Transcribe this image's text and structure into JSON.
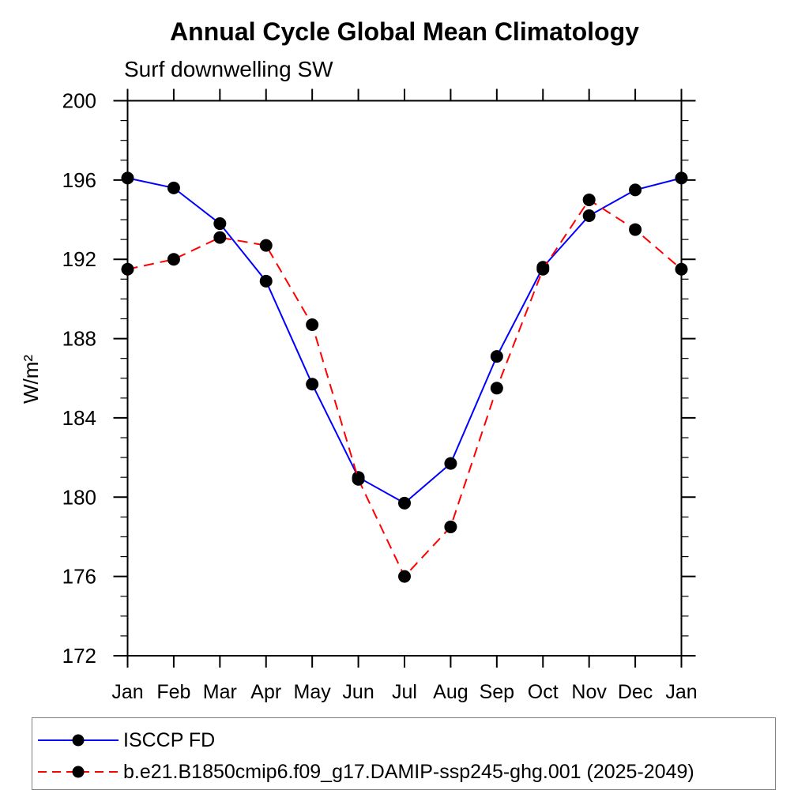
{
  "chart_data": {
    "type": "line",
    "title": "Annual Cycle Global Mean Climatology",
    "subtitle": "Surf downwelling SW",
    "ylabel": "W/m²",
    "x_categories": [
      "Jan",
      "Feb",
      "Mar",
      "Apr",
      "May",
      "Jun",
      "Jul",
      "Aug",
      "Sep",
      "Oct",
      "Nov",
      "Dec",
      "Jan"
    ],
    "ylim": [
      172,
      200
    ],
    "y_major_step": 4,
    "y_minor_step": 1,
    "y_major_ticks": [
      172,
      176,
      180,
      184,
      188,
      192,
      196,
      200
    ],
    "grid": false,
    "legend_position": "bottom-left-box",
    "series": [
      {
        "name": "ISCCP FD",
        "color": "#0000ff",
        "style": "solid",
        "marker": "filled-circle",
        "marker_color": "#000000",
        "values": [
          196.1,
          195.6,
          193.8,
          190.9,
          185.7,
          181.0,
          179.7,
          181.7,
          187.1,
          191.6,
          194.2,
          195.5,
          196.1
        ]
      },
      {
        "name": "b.e21.B1850cmip6.f09_g17.DAMIP-ssp245-ghg.001 (2025-2049)",
        "color": "#ff0000",
        "style": "dashed",
        "marker": "filled-circle",
        "marker_color": "#000000",
        "values": [
          191.5,
          192.0,
          193.1,
          192.7,
          188.7,
          180.9,
          176.0,
          178.5,
          185.5,
          191.5,
          195.0,
          193.5,
          191.5
        ]
      }
    ],
    "axis_color": "#000000"
  }
}
